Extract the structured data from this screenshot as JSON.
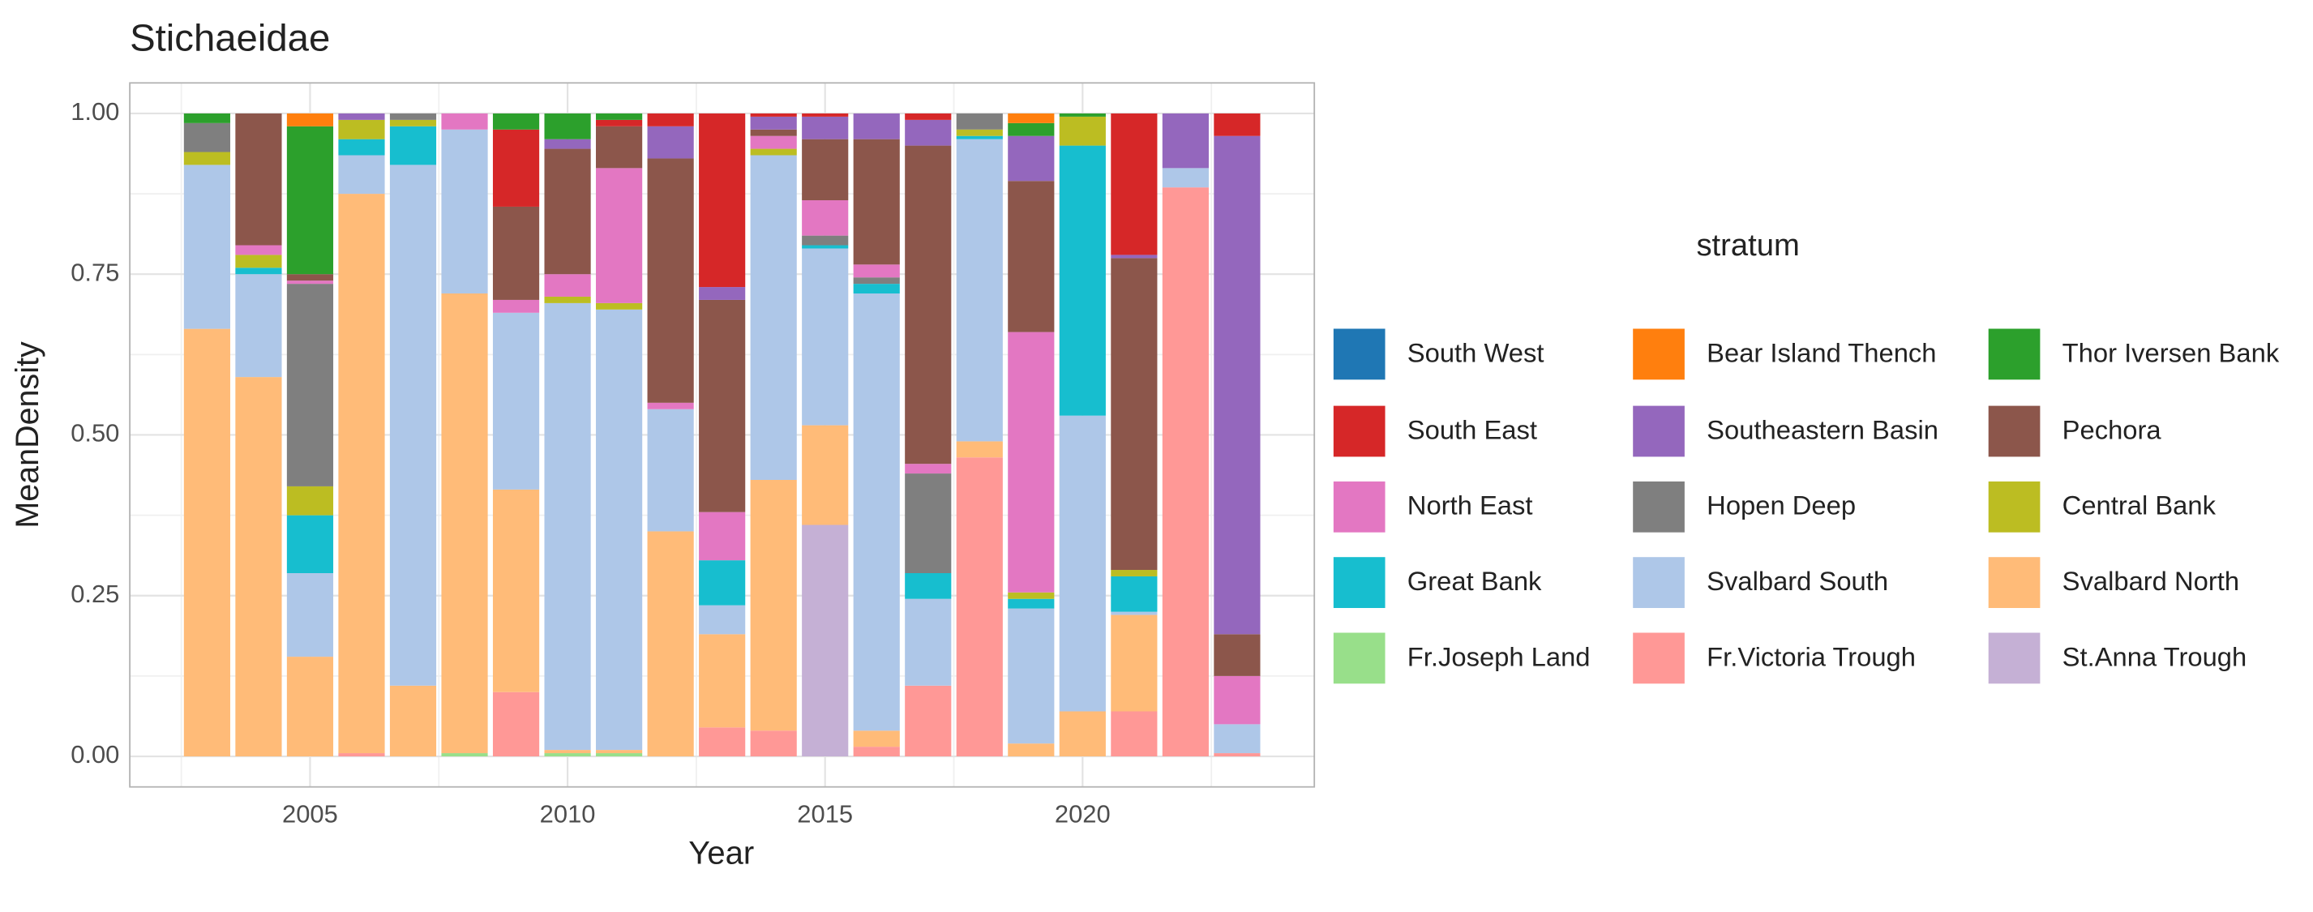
{
  "chart_data": {
    "type": "stacked_bar",
    "title": "Stichaeidae",
    "x_label": "Year",
    "y_label": "MeanDensity",
    "legend_title": "stratum",
    "legend_position": "right",
    "grid": true,
    "x": [
      2003,
      2004,
      2005,
      2006,
      2007,
      2008,
      2009,
      2010,
      2011,
      2012,
      2013,
      2014,
      2015,
      2016,
      2017,
      2018,
      2019,
      2020,
      2021,
      2022,
      2023
    ],
    "xlim": [
      2001.5,
      2024.5
    ],
    "xticks": [
      2005,
      2010,
      2015,
      2020
    ],
    "ylim": [
      -0.0475,
      1.0475
    ],
    "yticks": [
      {
        "value": 0,
        "label": "0.00"
      },
      {
        "value": 0.25,
        "label": "0.25"
      },
      {
        "value": 0.5,
        "label": "0.50"
      },
      {
        "value": 0.75,
        "label": "0.75"
      },
      {
        "value": 1,
        "label": "1.00"
      }
    ],
    "series": [
      {
        "name": "South West",
        "color": "#1f77b4",
        "values": [
          0,
          0,
          0,
          0,
          0,
          0,
          0,
          0,
          0,
          0,
          0,
          0,
          0,
          0,
          0,
          0,
          0,
          0,
          0,
          0,
          0
        ]
      },
      {
        "name": "Bear Island Thench",
        "color": "#ff7f0e",
        "values": [
          0,
          0,
          0.02,
          0,
          0,
          0,
          0,
          0,
          0,
          0,
          0,
          0,
          0,
          0,
          0,
          0,
          0.015,
          0,
          0,
          0,
          0
        ]
      },
      {
        "name": "Thor Iversen Bank",
        "color": "#2ca02c",
        "values": [
          0.015,
          0,
          0.23,
          0,
          0,
          0,
          0.025,
          0.04,
          0.01,
          0,
          0,
          0,
          0,
          0,
          0,
          0,
          0.02,
          0.005,
          0,
          0,
          0
        ]
      },
      {
        "name": "South East",
        "color": "#d62728",
        "values": [
          0,
          0,
          0,
          0,
          0,
          0,
          0.12,
          0,
          0.01,
          0.02,
          0.27,
          0.005,
          0.005,
          0,
          0.01,
          0,
          0,
          0,
          0.22,
          0,
          0.035
        ]
      },
      {
        "name": "Southeastern Basin",
        "color": "#9467bd",
        "values": [
          0,
          0,
          0,
          0.01,
          0,
          0,
          0,
          0.015,
          0,
          0.05,
          0.02,
          0.02,
          0.035,
          0.04,
          0.04,
          0,
          0.07,
          0,
          0.005,
          0.085,
          0.775
        ]
      },
      {
        "name": "Pechora",
        "color": "#8c564b",
        "values": [
          0,
          0.205,
          0.01,
          0,
          0,
          0,
          0.145,
          0.195,
          0.065,
          0.38,
          0.33,
          0.01,
          0.095,
          0.195,
          0.495,
          0,
          0.235,
          0,
          0.485,
          0,
          0.065
        ]
      },
      {
        "name": "North East",
        "color": "#e377c2",
        "values": [
          0,
          0.015,
          0.005,
          0,
          0,
          0.025,
          0.02,
          0.035,
          0.21,
          0.01,
          0.075,
          0.02,
          0.055,
          0.02,
          0.015,
          0,
          0.405,
          0,
          0,
          0,
          0.075
        ]
      },
      {
        "name": "Hopen Deep",
        "color": "#7f7f7f",
        "values": [
          0.045,
          0,
          0.315,
          0,
          0.01,
          0,
          0,
          0,
          0,
          0,
          0,
          0,
          0.015,
          0.01,
          0.155,
          0.025,
          0,
          0,
          0,
          0,
          0
        ]
      },
      {
        "name": "Central Bank",
        "color": "#bcbd22",
        "values": [
          0.02,
          0.02,
          0.045,
          0.03,
          0.01,
          0,
          0,
          0.01,
          0.01,
          0,
          0,
          0.01,
          0,
          0,
          0,
          0.01,
          0.01,
          0.045,
          0.01,
          0,
          0
        ]
      },
      {
        "name": "Great Bank",
        "color": "#17becf",
        "values": [
          0,
          0.01,
          0.09,
          0.025,
          0.06,
          0,
          0,
          0,
          0,
          0,
          0.07,
          0,
          0.005,
          0.015,
          0.04,
          0.005,
          0.015,
          0.42,
          0.055,
          0,
          0
        ]
      },
      {
        "name": "Svalbard South",
        "color": "#aec7e8",
        "values": [
          0.255,
          0.16,
          0.13,
          0.06,
          0.81,
          0.255,
          0.275,
          0.695,
          0.685,
          0.19,
          0.045,
          0.505,
          0.275,
          0.68,
          0.135,
          0.47,
          0.21,
          0.46,
          0.005,
          0.03,
          0.045
        ]
      },
      {
        "name": "Svalbard North",
        "color": "#ffbb78",
        "values": [
          0.665,
          0.59,
          0.155,
          0.87,
          0.11,
          0.715,
          0.315,
          0.005,
          0.005,
          0.35,
          0.145,
          0.39,
          0.155,
          0.025,
          0,
          0.025,
          0.02,
          0.07,
          0.15,
          0,
          0
        ]
      },
      {
        "name": "Fr.Joseph Land",
        "color": "#98df8a",
        "values": [
          0,
          0,
          0,
          0,
          0,
          0.005,
          0,
          0.005,
          0.005,
          0,
          0,
          0,
          0,
          0,
          0,
          0,
          0,
          0,
          0,
          0,
          0
        ]
      },
      {
        "name": "Fr.Victoria Trough",
        "color": "#ff9896",
        "values": [
          0,
          0,
          0,
          0.005,
          0,
          0,
          0.1,
          0,
          0,
          0,
          0.045,
          0.04,
          0,
          0.015,
          0.11,
          0.465,
          0,
          0,
          0.07,
          0.885,
          0.005
        ]
      },
      {
        "name": "St.Anna Trough",
        "color": "#c5b0d5",
        "values": [
          0,
          0,
          0,
          0,
          0,
          0,
          0,
          0,
          0,
          0,
          0,
          0,
          0.36,
          0,
          0,
          0,
          0,
          0,
          0,
          0,
          0
        ]
      }
    ]
  }
}
